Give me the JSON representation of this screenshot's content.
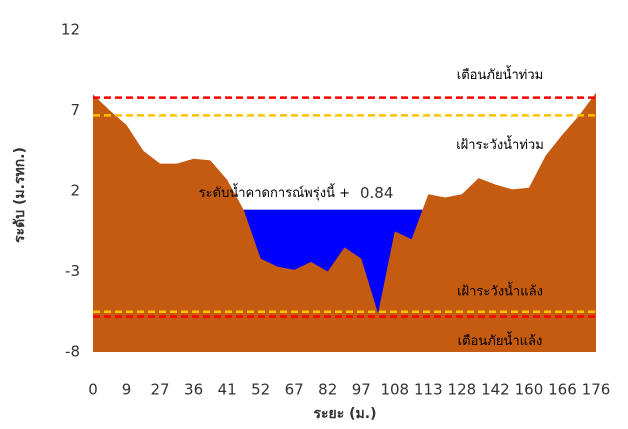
{
  "chart_data": {
    "type": "area",
    "y_axis_label": "ระดับ (ม.รทก.)",
    "x_axis_label": "ระยะ (ม.)",
    "categories": [
      "0",
      null,
      "9",
      null,
      "27",
      null,
      "36",
      null,
      "41",
      null,
      "52",
      null,
      "67",
      null,
      "82",
      null,
      "97",
      null,
      "108",
      null,
      "113",
      null,
      "128",
      null,
      "142",
      null,
      "160",
      null,
      "166",
      null,
      "176"
    ],
    "series": [
      {
        "color": "#c55a11",
        "values": [
          8.0,
          7.0,
          6.1,
          4.5,
          3.7,
          3.7,
          4.0,
          3.9,
          2.7,
          0.8,
          -2.2,
          -2.7,
          -2.9,
          -2.4,
          -3.0,
          -1.5,
          -2.2,
          -5.6,
          -0.5,
          -1.0,
          1.8,
          1.6,
          1.8,
          2.8,
          2.4,
          2.1,
          2.2,
          4.2,
          5.5,
          6.7,
          8.1
        ]
      }
    ],
    "water": {
      "label": "ระดับน้ำคาดการณ์พรุ่งนี้ +",
      "value": 0.84,
      "color": "#0000ff"
    },
    "thresholds": [
      {
        "label": "เตือนภัยน้ำท่วม",
        "value": 7.8,
        "color": "#ff0000"
      },
      {
        "label": "เฝ้าระวังน้ำท่วม",
        "value": 6.7,
        "color": "#ffc000"
      },
      {
        "label": "เฝ้าระวังน้ำแล้ง",
        "value": -5.5,
        "color": "#ffc000"
      },
      {
        "label": "เตือนภัยน้ำแล้ง",
        "value": -5.8,
        "color": "#ff0000"
      }
    ],
    "ylim": [
      -8,
      12
    ],
    "yticks": [
      -8,
      -3,
      2,
      7,
      12
    ]
  }
}
